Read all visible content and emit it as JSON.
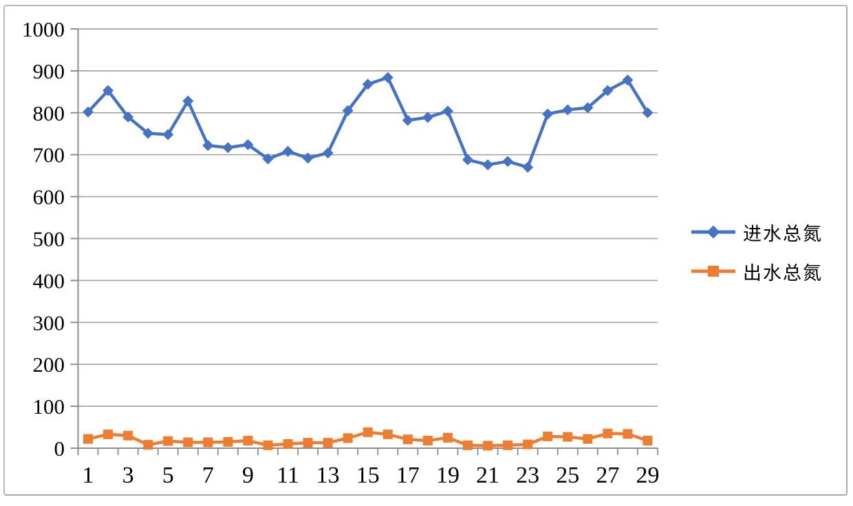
{
  "chart_data": {
    "type": "line",
    "x": [
      1,
      2,
      3,
      4,
      5,
      6,
      7,
      8,
      9,
      10,
      11,
      12,
      13,
      14,
      15,
      16,
      17,
      18,
      19,
      20,
      21,
      22,
      23,
      24,
      25,
      26,
      27,
      28,
      29
    ],
    "x_axis_tick_labels": [
      "1",
      "3",
      "5",
      "7",
      "9",
      "11",
      "13",
      "15",
      "17",
      "19",
      "21",
      "23",
      "25",
      "27",
      "29"
    ],
    "ylim": [
      0,
      1000
    ],
    "y_tick_step": 100,
    "y_tick_labels": [
      "0",
      "100",
      "200",
      "300",
      "400",
      "500",
      "600",
      "700",
      "800",
      "900",
      "1000"
    ],
    "grid": true,
    "legend_position": "right",
    "title": "",
    "xlabel": "",
    "ylabel": "",
    "series": [
      {
        "name": "进水总氮",
        "marker": "diamond",
        "color": "#4472C4",
        "values": [
          802,
          853,
          790,
          751,
          748,
          828,
          722,
          717,
          724,
          690,
          708,
          692,
          704,
          805,
          868,
          884,
          782,
          789,
          804,
          688,
          676,
          684,
          670,
          797,
          807,
          812,
          853,
          878,
          800
        ]
      },
      {
        "name": "出水总氮",
        "marker": "square",
        "color": "#ED7D31",
        "values": [
          22,
          33,
          30,
          8,
          17,
          14,
          14,
          15,
          18,
          7,
          10,
          13,
          13,
          24,
          38,
          33,
          21,
          18,
          25,
          7,
          6,
          7,
          9,
          28,
          27,
          22,
          35,
          34,
          18
        ]
      }
    ],
    "colors": {
      "gridline": "#A3A3A3",
      "axis": "#8C8C8C",
      "frame_border": "#B9B9B9",
      "text": "#000000",
      "background": "#FFFFFF"
    }
  }
}
